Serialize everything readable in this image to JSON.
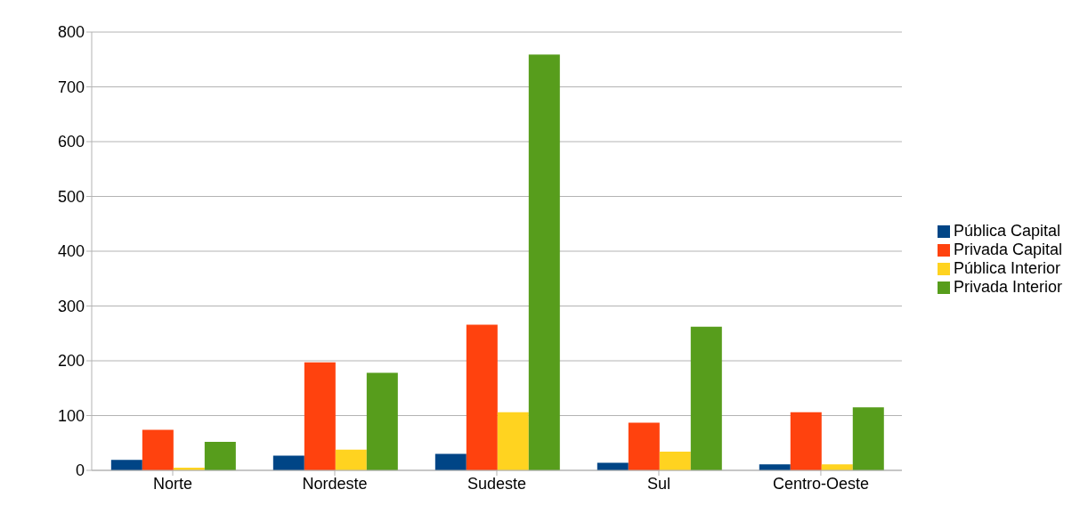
{
  "chart_data": {
    "type": "bar",
    "categories": [
      "Norte",
      "Nordeste",
      "Sudeste",
      "Sul",
      "Centro-Oeste"
    ],
    "series": [
      {
        "name": "Pública Capital",
        "color": "#004586",
        "values": [
          19,
          27,
          30,
          14,
          11
        ]
      },
      {
        "name": "Privada Capital",
        "color": "#ff420e",
        "values": [
          74,
          197,
          266,
          87,
          106
        ]
      },
      {
        "name": "Pública Interior",
        "color": "#ffd320",
        "values": [
          5,
          38,
          106,
          34,
          11
        ]
      },
      {
        "name": "Privada Interior",
        "color": "#579d1c",
        "values": [
          52,
          178,
          759,
          262,
          115
        ]
      }
    ],
    "ylim": [
      0,
      800
    ],
    "yticks": [
      0,
      100,
      200,
      300,
      400,
      500,
      600,
      700,
      800
    ],
    "grid": "y",
    "legend": "right"
  }
}
